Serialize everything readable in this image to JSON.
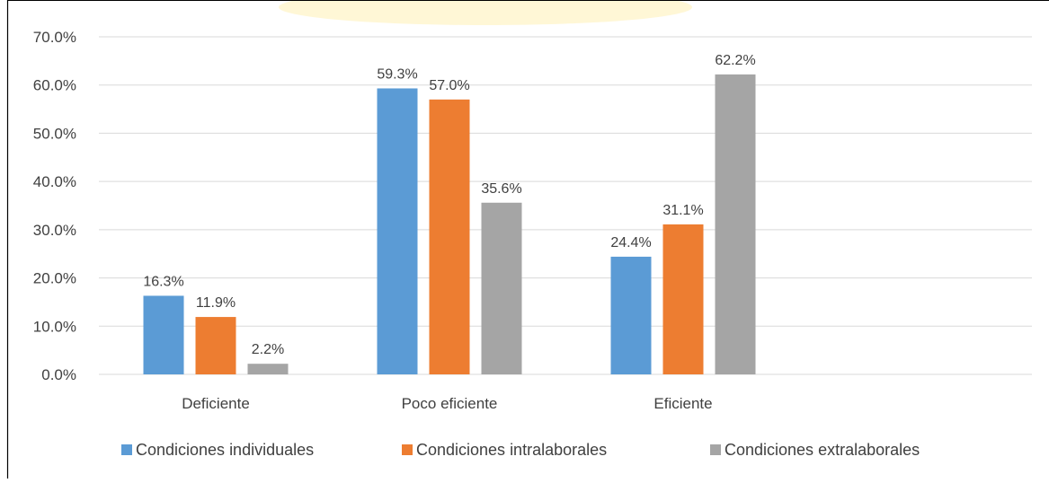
{
  "chart_data": {
    "type": "bar",
    "categories": [
      "Deficiente",
      "Poco eficiente",
      "Eficiente"
    ],
    "series": [
      {
        "name": "Condiciones individuales",
        "values": [
          16.3,
          59.3,
          24.4
        ],
        "labels": [
          "16.3%",
          "59.3%",
          "24.4%"
        ],
        "color": "#5b9bd5"
      },
      {
        "name": "Condiciones intralaborales",
        "values": [
          11.9,
          57.0,
          31.1
        ],
        "labels": [
          "11.9%",
          "57.0%",
          "31.1%"
        ],
        "color": "#ed7d31"
      },
      {
        "name": "Condiciones extralaborales",
        "values": [
          2.2,
          35.6,
          62.2
        ],
        "labels": [
          "2.2%",
          "35.6%",
          "62.2%"
        ],
        "color": "#a5a5a5"
      }
    ],
    "yticks": [
      "0.0%",
      "10.0%",
      "20.0%",
      "30.0%",
      "40.0%",
      "50.0%",
      "60.0%",
      "70.0%"
    ],
    "ylim": [
      0,
      70
    ],
    "grid": true,
    "legend": "bottom",
    "colors": {
      "grid": "#d9d9d9",
      "axis": "#d9d9d9",
      "text": "#404040",
      "border": "#000000",
      "watermark": "#fff2b3"
    }
  }
}
